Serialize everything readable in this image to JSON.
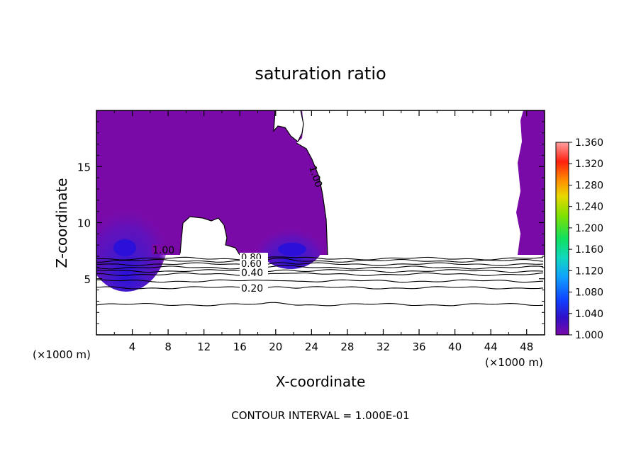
{
  "chart_data": {
    "type": "contour",
    "title": "saturation ratio",
    "xlabel": "X-coordinate",
    "ylabel": "Z-coordinate",
    "x_unit_label": "(×1000 m)",
    "z_unit_label": "(×1000 m)",
    "xlim": [
      0,
      50
    ],
    "ylim": [
      0,
      20
    ],
    "x_ticks": [
      "4",
      "8",
      "12",
      "16",
      "20",
      "24",
      "28",
      "32",
      "36",
      "40",
      "44",
      "48"
    ],
    "y_ticks": [
      "5",
      "10",
      "15"
    ],
    "x_tick_values": [
      4,
      8,
      12,
      16,
      20,
      24,
      28,
      32,
      36,
      40,
      44,
      48
    ],
    "y_tick_values": [
      5,
      10,
      15
    ],
    "colorbar": {
      "range": [
        1.0,
        1.36
      ],
      "ticks": [
        "1.000",
        "1.040",
        "1.080",
        "1.120",
        "1.160",
        "1.200",
        "1.240",
        "1.280",
        "1.320",
        "1.360"
      ],
      "tick_values": [
        1.0,
        1.04,
        1.08,
        1.12,
        1.16,
        1.2,
        1.24,
        1.28,
        1.32,
        1.36
      ],
      "colors": [
        "#7a0aa8",
        "#2a10d8",
        "#1060ff",
        "#10c0e8",
        "#10e080",
        "#40e000",
        "#c0e000",
        "#ffa000",
        "#ff2000",
        "#ff9090"
      ]
    },
    "contour_labels": [
      "1.00",
      "1.00",
      "0.80",
      "0.60",
      "0.40",
      "0.20"
    ],
    "contour_lines": [
      {
        "level": 0.2,
        "z": 4.2
      },
      {
        "level": 0.4,
        "z": 5.4
      },
      {
        "level": 0.6,
        "z": 6.0
      },
      {
        "level": 0.8,
        "z": 6.6
      },
      {
        "level": 0.1,
        "z": 2.7
      },
      {
        "level": 0.3,
        "z": 4.8
      },
      {
        "level": 0.5,
        "z": 5.7
      },
      {
        "level": 0.7,
        "z": 6.3
      },
      {
        "level": 0.9,
        "z": 6.8
      }
    ],
    "footer": "CONTOUR INTERVAL = 1.000E-01"
  },
  "colors": {
    "supersaturated": "#7a0aa8",
    "frame": "#000000",
    "background": "#ffffff"
  }
}
